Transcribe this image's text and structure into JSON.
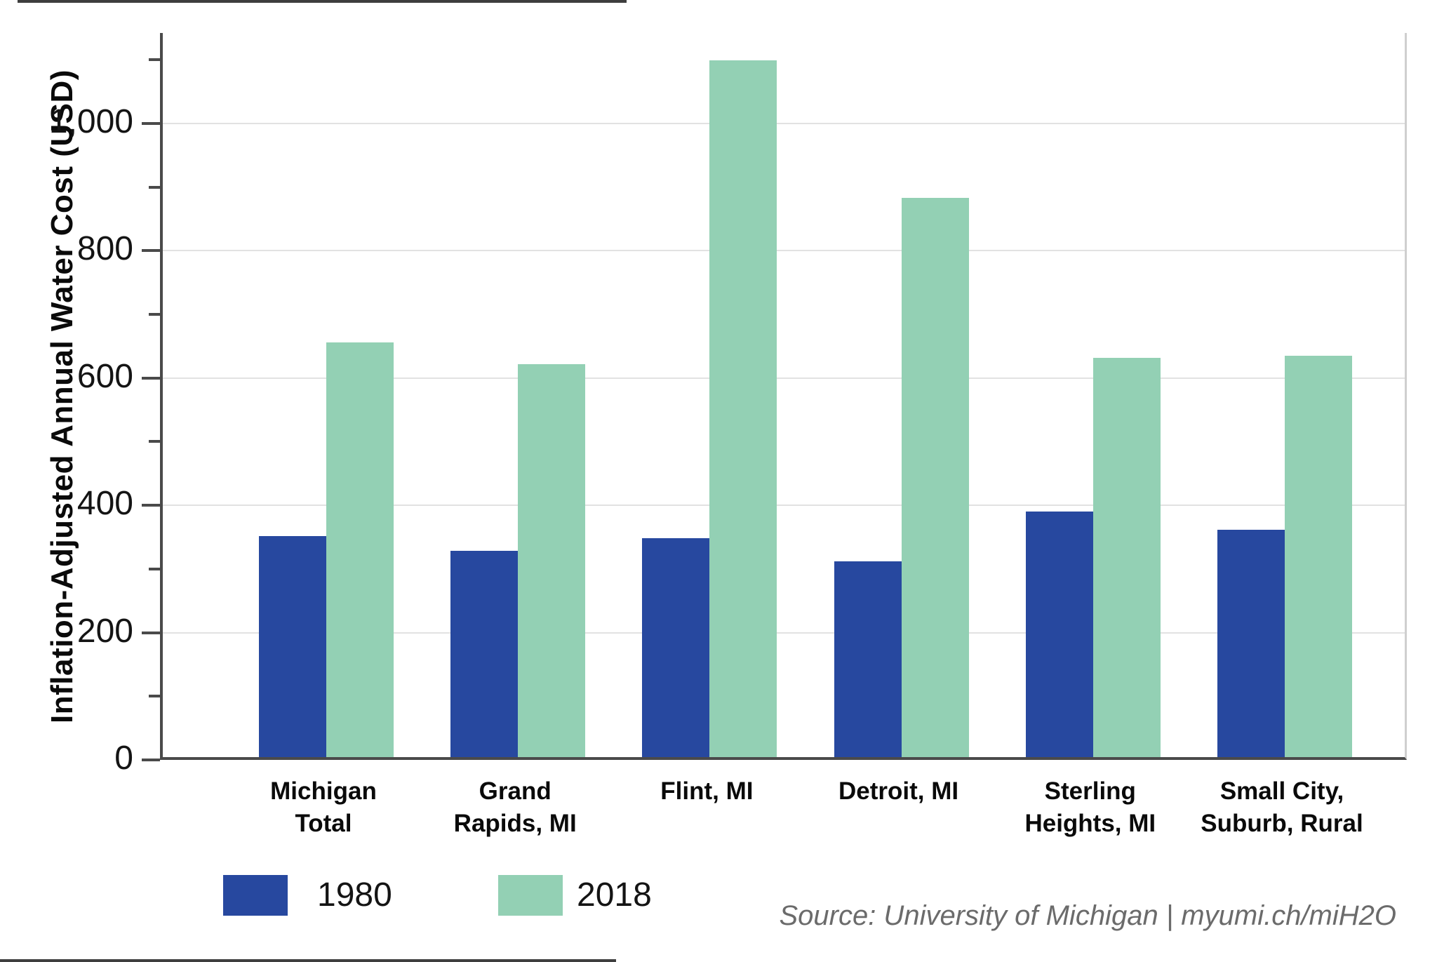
{
  "chart_data": {
    "type": "bar",
    "title": "",
    "xlabel": "",
    "ylabel": "Inflation-Adjusted Annual Water Cost (USD)",
    "categories": [
      "Michigan\nTotal",
      "Grand\nRapids, MI",
      "Flint, MI",
      "Detroit, MI",
      "Sterling\nHeights, MI",
      "Small City,\nSuburb, Rural"
    ],
    "series": [
      {
        "name": "1980",
        "color": "#27489F",
        "values": [
          347,
          324,
          344,
          307,
          386,
          357
        ]
      },
      {
        "name": "2018",
        "color": "#93D0B4",
        "values": [
          652,
          617,
          1095,
          878,
          627,
          631
        ]
      }
    ],
    "y_ticks": [
      0,
      200,
      400,
      600,
      800,
      1000
    ],
    "y_tick_labels": [
      "0",
      "200",
      "400",
      "600",
      "800",
      "1,000"
    ],
    "y_minor_ticks": [
      100,
      300,
      500,
      700,
      900,
      1100
    ],
    "ylim": [
      0,
      1142
    ],
    "grid": true,
    "legend_position": "bottom-left",
    "colors": {
      "grid": "#e2e2e2",
      "axis": "#4a4a4a",
      "series_1980": "#27489F",
      "series_2018": "#93D0B4"
    }
  },
  "legend": {
    "items": [
      {
        "label": "1980",
        "color": "#27489F"
      },
      {
        "label": "2018",
        "color": "#93D0B4"
      }
    ]
  },
  "source": {
    "text": "Source: University of Michigan | myumi.ch/miH2O"
  }
}
